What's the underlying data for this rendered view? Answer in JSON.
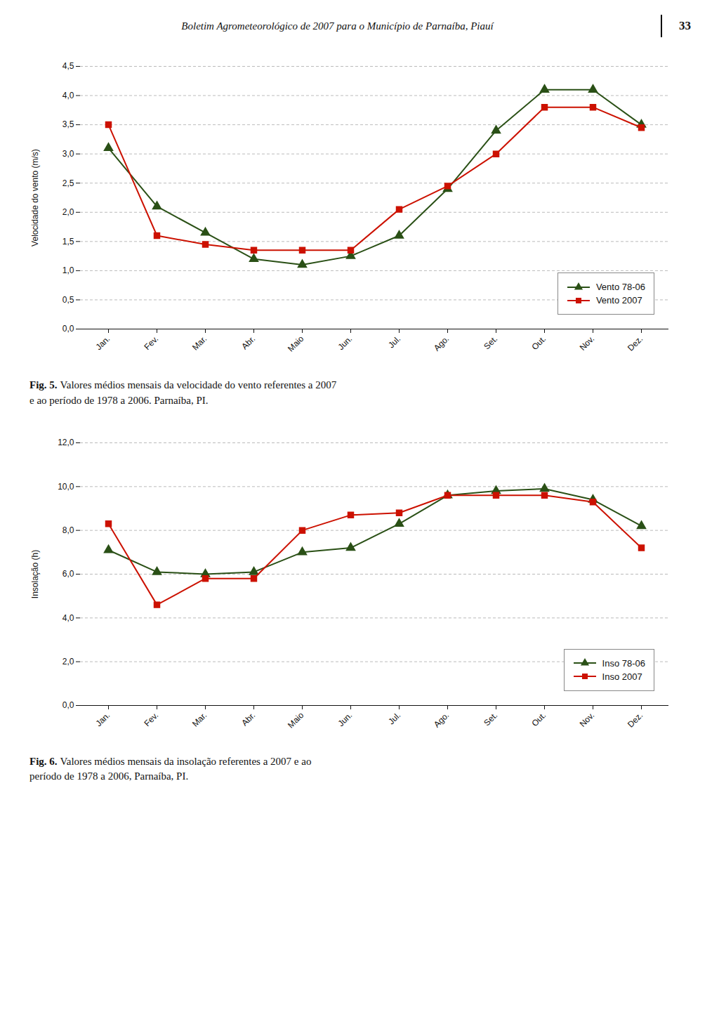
{
  "header": "Boletim Agrometeorológico de 2007 para o Município de Parnaíba, Piauí",
  "page": "33",
  "chart_data": [
    {
      "type": "line",
      "categories": [
        "Jan.",
        "Fev.",
        "Mar.",
        "Abr.",
        "Maio",
        "Jun.",
        "Jul.",
        "Ago.",
        "Set.",
        "Out.",
        "Nov.",
        "Dez."
      ],
      "series": [
        {
          "name": "Vento 78-06",
          "color": "#2A5016",
          "marker": "triangle",
          "values": [
            3.1,
            2.1,
            1.65,
            1.2,
            1.1,
            1.25,
            1.6,
            2.4,
            3.4,
            4.1,
            4.1,
            3.5
          ]
        },
        {
          "name": "Vento 2007",
          "color": "#CC1100",
          "marker": "square",
          "values": [
            3.5,
            1.6,
            1.45,
            1.35,
            1.35,
            1.35,
            2.05,
            2.45,
            3.0,
            3.8,
            3.8,
            3.45
          ]
        }
      ],
      "ylabel": "Velocidade do vento (m/s)",
      "ylim": [
        0.0,
        4.5
      ],
      "yticks": [
        {
          "value": 0.0,
          "label": "0,0"
        },
        {
          "value": 0.5,
          "label": "0,5"
        },
        {
          "value": 1.0,
          "label": "1,0"
        },
        {
          "value": 1.5,
          "label": "1,5"
        },
        {
          "value": 2.0,
          "label": "2,0"
        },
        {
          "value": 2.5,
          "label": "2,5"
        },
        {
          "value": 3.0,
          "label": "3,0"
        },
        {
          "value": 3.5,
          "label": "3,5"
        },
        {
          "value": 4.0,
          "label": "4,0"
        },
        {
          "value": 4.5,
          "label": "4,5"
        }
      ],
      "grid": true,
      "legend": "lower right",
      "caption_label": "Fig. 5.",
      "caption": [
        "Valores médios mensais da velocidade do vento referentes a 2007",
        "e ao período de 1978 a 2006. Parnaíba, PI."
      ]
    },
    {
      "type": "line",
      "categories": [
        "Jan.",
        "Fev.",
        "Mar.",
        "Abr.",
        "Maio",
        "Jun.",
        "Jul.",
        "Ago.",
        "Set.",
        "Out.",
        "Nov.",
        "Dez."
      ],
      "series": [
        {
          "name": "Inso 78-06",
          "color": "#2A5016",
          "marker": "triangle",
          "values": [
            7.1,
            6.1,
            6.0,
            6.1,
            7.0,
            7.2,
            8.3,
            9.6,
            9.8,
            9.9,
            9.4,
            8.2
          ]
        },
        {
          "name": "Inso 2007",
          "color": "#CC1100",
          "marker": "square",
          "values": [
            8.3,
            4.6,
            5.8,
            5.8,
            8.0,
            8.7,
            8.8,
            9.6,
            9.6,
            9.6,
            9.3,
            7.2
          ]
        }
      ],
      "ylabel": "Insolação (h)",
      "ylim": [
        0.0,
        12.0
      ],
      "yticks": [
        {
          "value": 0.0,
          "label": "0,0"
        },
        {
          "value": 2.0,
          "label": "2,0"
        },
        {
          "value": 4.0,
          "label": "4,0"
        },
        {
          "value": 6.0,
          "label": "6,0"
        },
        {
          "value": 8.0,
          "label": "8,0"
        },
        {
          "value": 10.0,
          "label": "10,0"
        },
        {
          "value": 12.0,
          "label": "12,0"
        }
      ],
      "grid": true,
      "legend": "lower right",
      "caption_label": "Fig. 6.",
      "caption": [
        "Valores médios mensais da insolação referentes a 2007 e ao",
        "período de 1978 a 2006, Parnaíba, PI."
      ]
    }
  ]
}
